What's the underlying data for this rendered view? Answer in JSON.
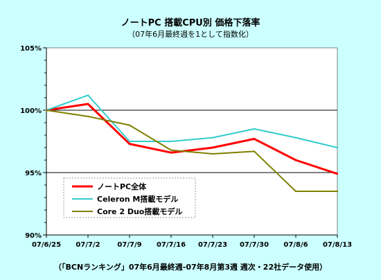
{
  "chart_data": {
    "type": "line",
    "title": "ノートPC 搭載CPU別 価格下落率",
    "subtitle": "（07年6月最終週を1として指数化）",
    "footer": "（「BCNランキング」07年6月最終週-07年8月第3週 週次・22社データ使用）",
    "x": [
      "07/6/25",
      "07/7/2",
      "07/7/9",
      "07/7/16",
      "07/7/23",
      "07/7/30",
      "07/8/6",
      "07/8/13"
    ],
    "y_ticks": [
      "105%",
      "100%",
      "95%",
      "90%"
    ],
    "ylim": [
      90,
      105
    ],
    "gridlines_at": [
      100,
      95
    ],
    "legend_position": "bottom-left",
    "series": [
      {
        "name": "ノートPC全体",
        "color": "#ff0000",
        "values": [
          100.0,
          100.5,
          97.3,
          96.6,
          97.0,
          97.7,
          96.0,
          94.9
        ]
      },
      {
        "name": "Celeron M搭載モデル",
        "color": "#33cccc",
        "values": [
          100.0,
          101.2,
          97.5,
          97.5,
          97.8,
          98.5,
          97.8,
          97.0
        ]
      },
      {
        "name": "Core 2 Duo搭載モデル",
        "color": "#808000",
        "values": [
          100.0,
          99.5,
          98.8,
          96.8,
          96.5,
          96.7,
          93.5,
          93.5
        ]
      }
    ]
  }
}
